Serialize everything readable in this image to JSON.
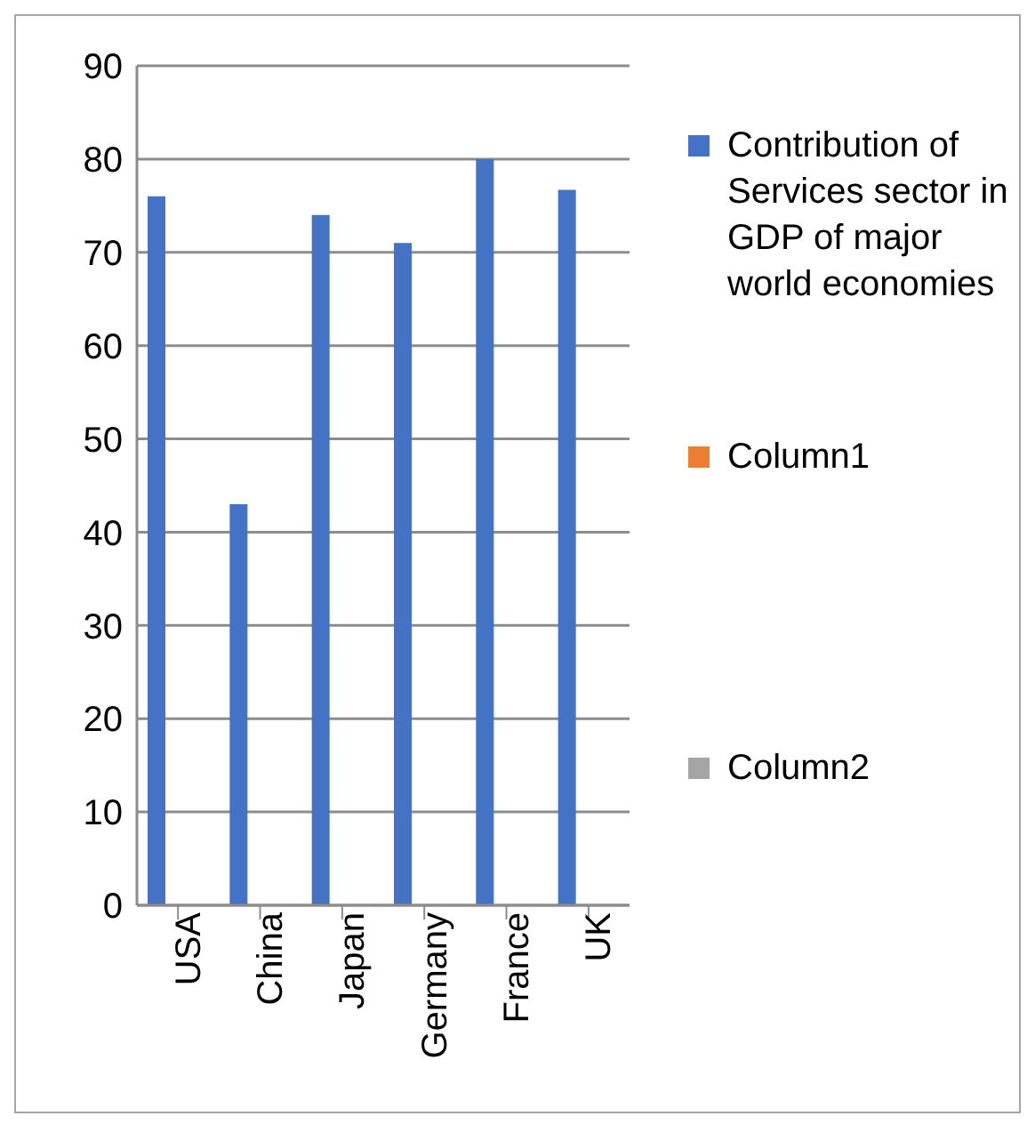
{
  "chart_data": {
    "type": "bar",
    "categories": [
      "USA",
      "China",
      "Japan",
      "Germany",
      "France",
      "UK"
    ],
    "series": [
      {
        "name": "Contribution of Services sector in GDP of major world economies",
        "color": "#4472c4",
        "values": [
          76,
          43,
          74,
          71,
          80,
          76.7
        ]
      },
      {
        "name": "Column1",
        "color": "#ed7d31",
        "values": [
          null,
          null,
          null,
          null,
          null,
          null
        ]
      },
      {
        "name": "Column2",
        "color": "#a5a5a5",
        "values": [
          null,
          null,
          null,
          null,
          null,
          null
        ]
      }
    ],
    "ylim": [
      0,
      90
    ],
    "yticks": [
      0,
      10,
      20,
      30,
      40,
      50,
      60,
      70,
      80,
      90
    ],
    "grid": "y",
    "legend": "right"
  }
}
